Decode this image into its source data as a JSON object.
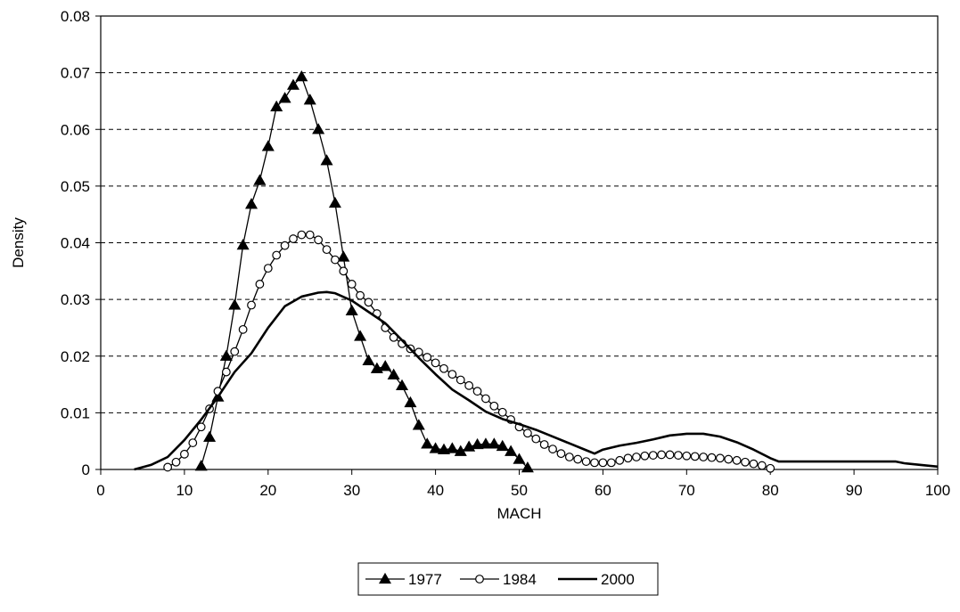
{
  "chart_data": {
    "type": "line",
    "title": "",
    "xlabel": "MACH",
    "ylabel": "Density",
    "xlim": [
      0,
      100
    ],
    "ylim": [
      0,
      0.08
    ],
    "x_ticks": [
      "0",
      "10",
      "20",
      "30",
      "40",
      "50",
      "60",
      "70",
      "80",
      "90",
      "100"
    ],
    "y_ticks": [
      "0",
      "0.01",
      "0.02",
      "0.03",
      "0.04",
      "0.05",
      "0.06",
      "0.07",
      "0.08"
    ],
    "grid": "horizontal dashed",
    "legend_position": "bottom",
    "series": [
      {
        "name": "1977",
        "marker": "filled-triangle",
        "color": "#000000",
        "x": [
          12,
          13,
          14,
          15,
          16,
          17,
          18,
          19,
          20,
          21,
          22,
          23,
          24,
          25,
          26,
          27,
          28,
          29,
          30,
          31,
          32,
          33,
          34,
          35,
          36,
          37,
          38,
          39,
          40,
          41,
          42,
          43,
          44,
          45,
          46,
          47,
          48,
          49,
          50,
          51
        ],
        "y": [
          0.0006,
          0.0057,
          0.0128,
          0.02,
          0.029,
          0.0396,
          0.0468,
          0.051,
          0.057,
          0.064,
          0.0655,
          0.0678,
          0.0693,
          0.0652,
          0.06,
          0.0545,
          0.047,
          0.0375,
          0.028,
          0.0235,
          0.0192,
          0.0178,
          0.0182,
          0.0167,
          0.0148,
          0.0118,
          0.0078,
          0.0045,
          0.0037,
          0.0035,
          0.0037,
          0.0032,
          0.004,
          0.0044,
          0.0045,
          0.0045,
          0.0041,
          0.0032,
          0.0018,
          0.0003
        ]
      },
      {
        "name": "1984",
        "marker": "open-circle",
        "color": "#000000",
        "x": [
          8,
          9,
          10,
          11,
          12,
          13,
          14,
          15,
          16,
          17,
          18,
          19,
          20,
          21,
          22,
          23,
          24,
          25,
          26,
          27,
          28,
          29,
          30,
          31,
          32,
          33,
          34,
          35,
          36,
          37,
          38,
          39,
          40,
          41,
          42,
          43,
          44,
          45,
          46,
          47,
          48,
          49,
          50,
          51,
          52,
          53,
          54,
          55,
          56,
          57,
          58,
          59,
          60,
          61,
          62,
          63,
          64,
          65,
          66,
          67,
          68,
          69,
          70,
          71,
          72,
          73,
          74,
          75,
          76,
          77,
          78,
          79,
          80
        ],
        "y": [
          0.0004,
          0.0013,
          0.0027,
          0.0047,
          0.0075,
          0.0107,
          0.0138,
          0.0172,
          0.0208,
          0.0247,
          0.029,
          0.0327,
          0.0355,
          0.0378,
          0.0395,
          0.0407,
          0.0414,
          0.0414,
          0.0405,
          0.0388,
          0.037,
          0.035,
          0.0327,
          0.0307,
          0.0295,
          0.0275,
          0.025,
          0.0233,
          0.0222,
          0.0213,
          0.0207,
          0.0198,
          0.0188,
          0.0178,
          0.0168,
          0.0158,
          0.0148,
          0.0138,
          0.0125,
          0.0112,
          0.0101,
          0.0088,
          0.0075,
          0.0064,
          0.0054,
          0.0044,
          0.0036,
          0.0028,
          0.0022,
          0.0018,
          0.0014,
          0.0012,
          0.0012,
          0.0012,
          0.0016,
          0.002,
          0.0022,
          0.0024,
          0.0025,
          0.0026,
          0.0026,
          0.0025,
          0.0024,
          0.0023,
          0.0022,
          0.0021,
          0.002,
          0.0018,
          0.0016,
          0.0013,
          0.001,
          0.0007,
          0.0002
        ]
      },
      {
        "name": "2000",
        "marker": "none",
        "color": "#000000",
        "x": [
          4,
          6,
          8,
          10,
          12,
          14,
          16,
          18,
          20,
          22,
          24,
          26,
          27,
          28,
          30,
          32,
          34,
          36,
          38,
          40,
          42,
          44,
          46,
          48,
          50,
          52,
          54,
          56,
          58,
          59,
          60,
          62,
          64,
          66,
          68,
          70,
          72,
          74,
          76,
          78,
          80,
          81,
          84,
          90,
          95,
          96,
          98,
          100
        ],
        "y": [
          0,
          0.0008,
          0.0022,
          0.0052,
          0.0088,
          0.0128,
          0.0172,
          0.0205,
          0.025,
          0.0288,
          0.0305,
          0.0312,
          0.0313,
          0.0311,
          0.0298,
          0.0278,
          0.0258,
          0.0228,
          0.0197,
          0.0168,
          0.0141,
          0.0122,
          0.0102,
          0.0089,
          0.008,
          0.007,
          0.0058,
          0.0046,
          0.0034,
          0.0028,
          0.0035,
          0.0042,
          0.0047,
          0.0053,
          0.006,
          0.0063,
          0.0063,
          0.0058,
          0.0048,
          0.0035,
          0.002,
          0.0014,
          0.0014,
          0.0014,
          0.0014,
          0.0011,
          0.0008,
          0.0005
        ]
      }
    ]
  }
}
